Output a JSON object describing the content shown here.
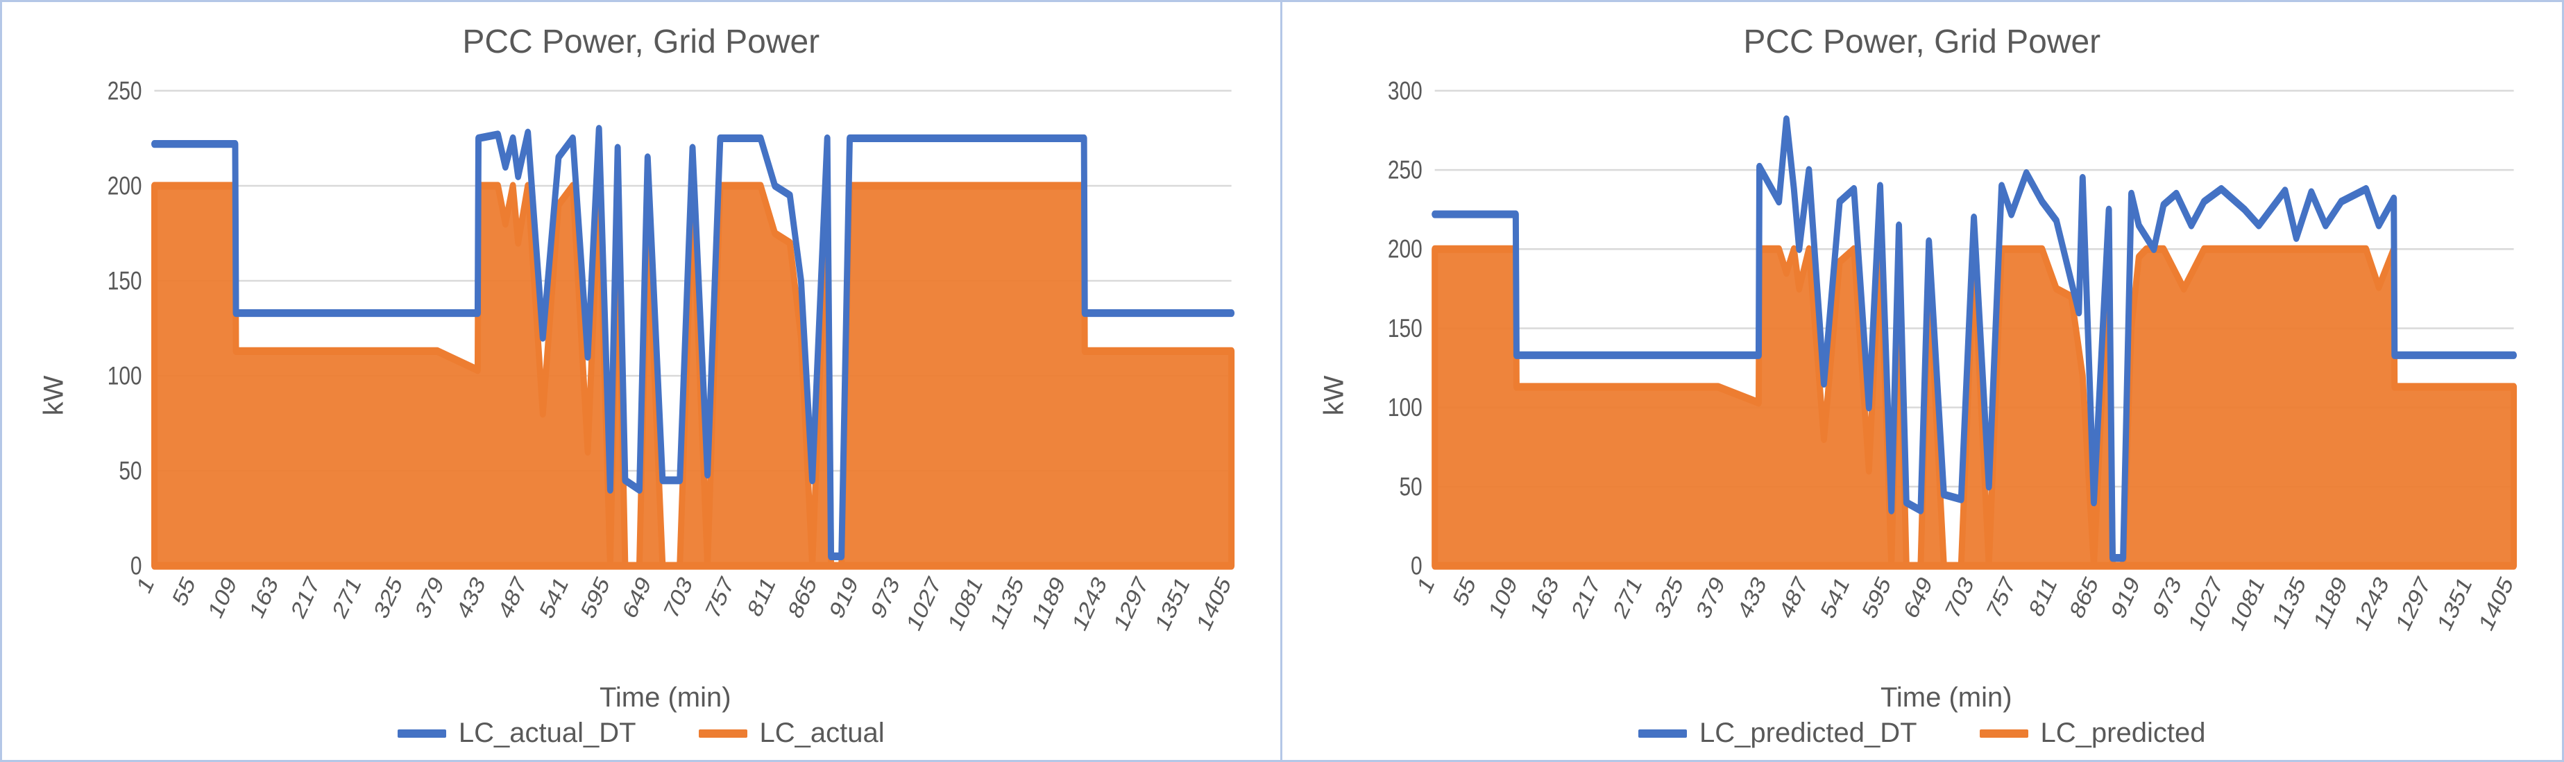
{
  "charts": [
    {
      "title": "PCC Power, Grid Power",
      "ylabel": "kW",
      "xlabel": "Time (min)",
      "ylim": [
        0,
        250
      ],
      "ytick_step": 50,
      "x_tick_labels": [
        "1",
        "55",
        "109",
        "163",
        "217",
        "271",
        "325",
        "379",
        "433",
        "487",
        "541",
        "595",
        "649",
        "703",
        "757",
        "811",
        "865",
        "919",
        "973",
        "1027",
        "1081",
        "1135",
        "1189",
        "1243",
        "1297",
        "1351",
        "1405"
      ],
      "background_color": "#ffffff",
      "grid_color": "#d9d9d9",
      "title_fontsize": 48,
      "label_fontsize": 40,
      "tick_fontsize": 30,
      "line_width": 9,
      "series": [
        {
          "name": "LC_actual_DT",
          "color": "#4472c4",
          "kind": "line",
          "x": [
            1,
            55,
            109,
            110,
            163,
            217,
            271,
            325,
            379,
            433,
            434,
            460,
            470,
            480,
            487,
            500,
            520,
            541,
            560,
            580,
            595,
            610,
            620,
            630,
            649,
            660,
            680,
            703,
            720,
            740,
            757,
            770,
            790,
            811,
            830,
            850,
            865,
            880,
            900,
            905,
            919,
            930,
            940,
            950,
            973,
            1000,
            1027,
            1050,
            1081,
            1100,
            1135,
            1160,
            1189,
            1210,
            1243,
            1244,
            1297,
            1351,
            1405,
            1440
          ],
          "y": [
            222,
            222,
            222,
            133,
            133,
            133,
            133,
            133,
            133,
            133,
            225,
            227,
            210,
            225,
            205,
            228,
            120,
            215,
            225,
            110,
            230,
            40,
            220,
            45,
            40,
            215,
            45,
            45,
            220,
            48,
            225,
            225,
            225,
            225,
            200,
            195,
            150,
            45,
            225,
            5,
            5,
            225,
            225,
            225,
            225,
            225,
            225,
            225,
            225,
            225,
            225,
            225,
            225,
            225,
            225,
            133,
            133,
            133,
            133,
            133
          ]
        },
        {
          "name": "LC_actual",
          "color": "#ed7d31",
          "kind": "area",
          "x": [
            1,
            55,
            109,
            110,
            163,
            217,
            271,
            325,
            379,
            433,
            434,
            460,
            470,
            480,
            487,
            500,
            520,
            541,
            560,
            580,
            595,
            610,
            620,
            630,
            649,
            660,
            680,
            703,
            720,
            740,
            757,
            770,
            790,
            811,
            830,
            850,
            865,
            880,
            900,
            905,
            919,
            930,
            940,
            950,
            973,
            1000,
            1027,
            1050,
            1081,
            1100,
            1135,
            1160,
            1189,
            1210,
            1243,
            1244,
            1297,
            1351,
            1405,
            1440
          ],
          "y": [
            200,
            200,
            200,
            113,
            113,
            113,
            113,
            113,
            113,
            103,
            200,
            200,
            180,
            200,
            170,
            200,
            80,
            190,
            200,
            60,
            200,
            0,
            190,
            0,
            0,
            185,
            0,
            0,
            195,
            0,
            200,
            200,
            200,
            200,
            175,
            170,
            120,
            0,
            200,
            0,
            0,
            200,
            200,
            200,
            200,
            200,
            200,
            200,
            200,
            200,
            200,
            200,
            200,
            200,
            200,
            113,
            113,
            113,
            113,
            113
          ]
        }
      ]
    },
    {
      "title": "PCC Power, Grid Power",
      "ylabel": "kW",
      "xlabel": "Time (min)",
      "ylim": [
        0,
        300
      ],
      "ytick_step": 50,
      "x_tick_labels": [
        "1",
        "55",
        "109",
        "163",
        "217",
        "271",
        "325",
        "379",
        "433",
        "487",
        "541",
        "595",
        "649",
        "703",
        "757",
        "811",
        "865",
        "919",
        "973",
        "1027",
        "1081",
        "1135",
        "1189",
        "1243",
        "1297",
        "1351",
        "1405"
      ],
      "background_color": "#ffffff",
      "grid_color": "#d9d9d9",
      "title_fontsize": 48,
      "label_fontsize": 40,
      "tick_fontsize": 30,
      "line_width": 9,
      "series": [
        {
          "name": "LC_predicted_DT",
          "color": "#4472c4",
          "kind": "line",
          "x": [
            1,
            55,
            109,
            110,
            163,
            217,
            271,
            325,
            379,
            433,
            434,
            460,
            470,
            480,
            487,
            500,
            520,
            541,
            560,
            580,
            595,
            610,
            620,
            630,
            649,
            660,
            680,
            703,
            720,
            740,
            757,
            770,
            790,
            811,
            830,
            860,
            865,
            880,
            900,
            905,
            919,
            930,
            940,
            960,
            973,
            990,
            1010,
            1027,
            1050,
            1081,
            1100,
            1135,
            1150,
            1170,
            1189,
            1210,
            1243,
            1260,
            1280,
            1281,
            1297,
            1351,
            1405,
            1440
          ],
          "y": [
            222,
            222,
            222,
            133,
            133,
            133,
            133,
            133,
            133,
            133,
            252,
            230,
            282,
            238,
            200,
            250,
            115,
            230,
            238,
            100,
            240,
            35,
            215,
            40,
            35,
            205,
            45,
            42,
            220,
            50,
            240,
            222,
            248,
            230,
            218,
            160,
            245,
            40,
            225,
            5,
            5,
            235,
            215,
            200,
            228,
            235,
            215,
            230,
            238,
            225,
            215,
            237,
            207,
            236,
            215,
            230,
            238,
            215,
            232,
            133,
            133,
            133,
            133,
            133
          ]
        },
        {
          "name": "LC_predicted",
          "color": "#ed7d31",
          "kind": "area",
          "x": [
            1,
            55,
            109,
            110,
            163,
            217,
            271,
            325,
            379,
            433,
            434,
            460,
            470,
            480,
            487,
            500,
            520,
            541,
            560,
            580,
            595,
            610,
            620,
            630,
            649,
            660,
            680,
            703,
            720,
            740,
            757,
            770,
            790,
            811,
            830,
            850,
            865,
            880,
            900,
            905,
            919,
            930,
            940,
            950,
            973,
            1000,
            1027,
            1050,
            1081,
            1100,
            1135,
            1160,
            1189,
            1210,
            1243,
            1260,
            1280,
            1281,
            1297,
            1351,
            1405,
            1440
          ],
          "y": [
            200,
            200,
            200,
            113,
            113,
            113,
            113,
            113,
            113,
            103,
            200,
            200,
            185,
            200,
            175,
            200,
            80,
            192,
            200,
            60,
            205,
            0,
            190,
            0,
            0,
            185,
            0,
            0,
            195,
            0,
            200,
            200,
            200,
            200,
            175,
            170,
            120,
            0,
            200,
            0,
            0,
            150,
            195,
            200,
            200,
            175,
            200,
            200,
            200,
            200,
            200,
            200,
            200,
            200,
            200,
            176,
            200,
            113,
            113,
            113,
            113,
            113
          ]
        }
      ]
    }
  ]
}
